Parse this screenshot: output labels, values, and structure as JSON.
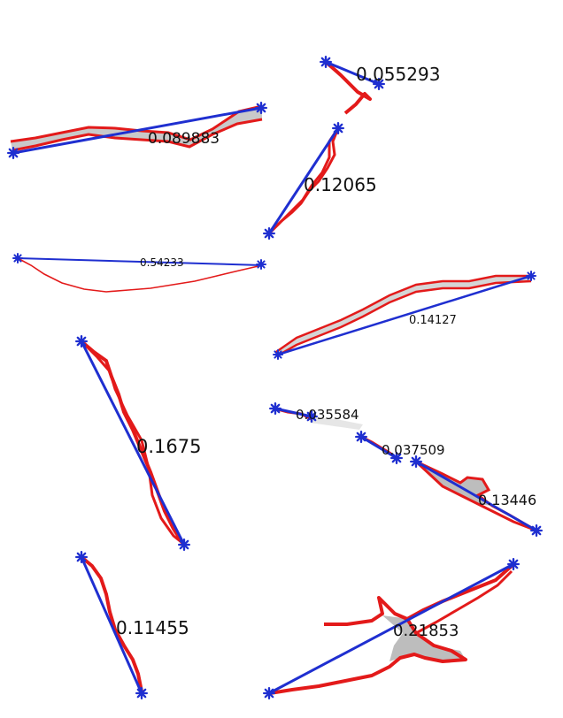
{
  "colors": {
    "background": "#ffffff",
    "contour": "#e31a1a",
    "chord": "#1f2fd0",
    "fill": "#c9c9c9",
    "marker": "#1f2fd0"
  },
  "panels": [
    {
      "id": "p1",
      "value_label": "0.089883"
    },
    {
      "id": "p2",
      "value_label": "0.055293"
    },
    {
      "id": "p3",
      "value_label": "0.12065"
    },
    {
      "id": "p4",
      "value_label": "0.54233"
    },
    {
      "id": "p5",
      "value_label": "0.14127"
    },
    {
      "id": "p6",
      "value_label": "0.1675"
    },
    {
      "id": "p7",
      "value_label": "0.035584"
    },
    {
      "id": "p8",
      "value_label": "0.037509"
    },
    {
      "id": "p9",
      "value_label": "0.13446"
    },
    {
      "id": "p10",
      "value_label": "0.11455"
    },
    {
      "id": "p11",
      "value_label": "0.21853"
    }
  ]
}
